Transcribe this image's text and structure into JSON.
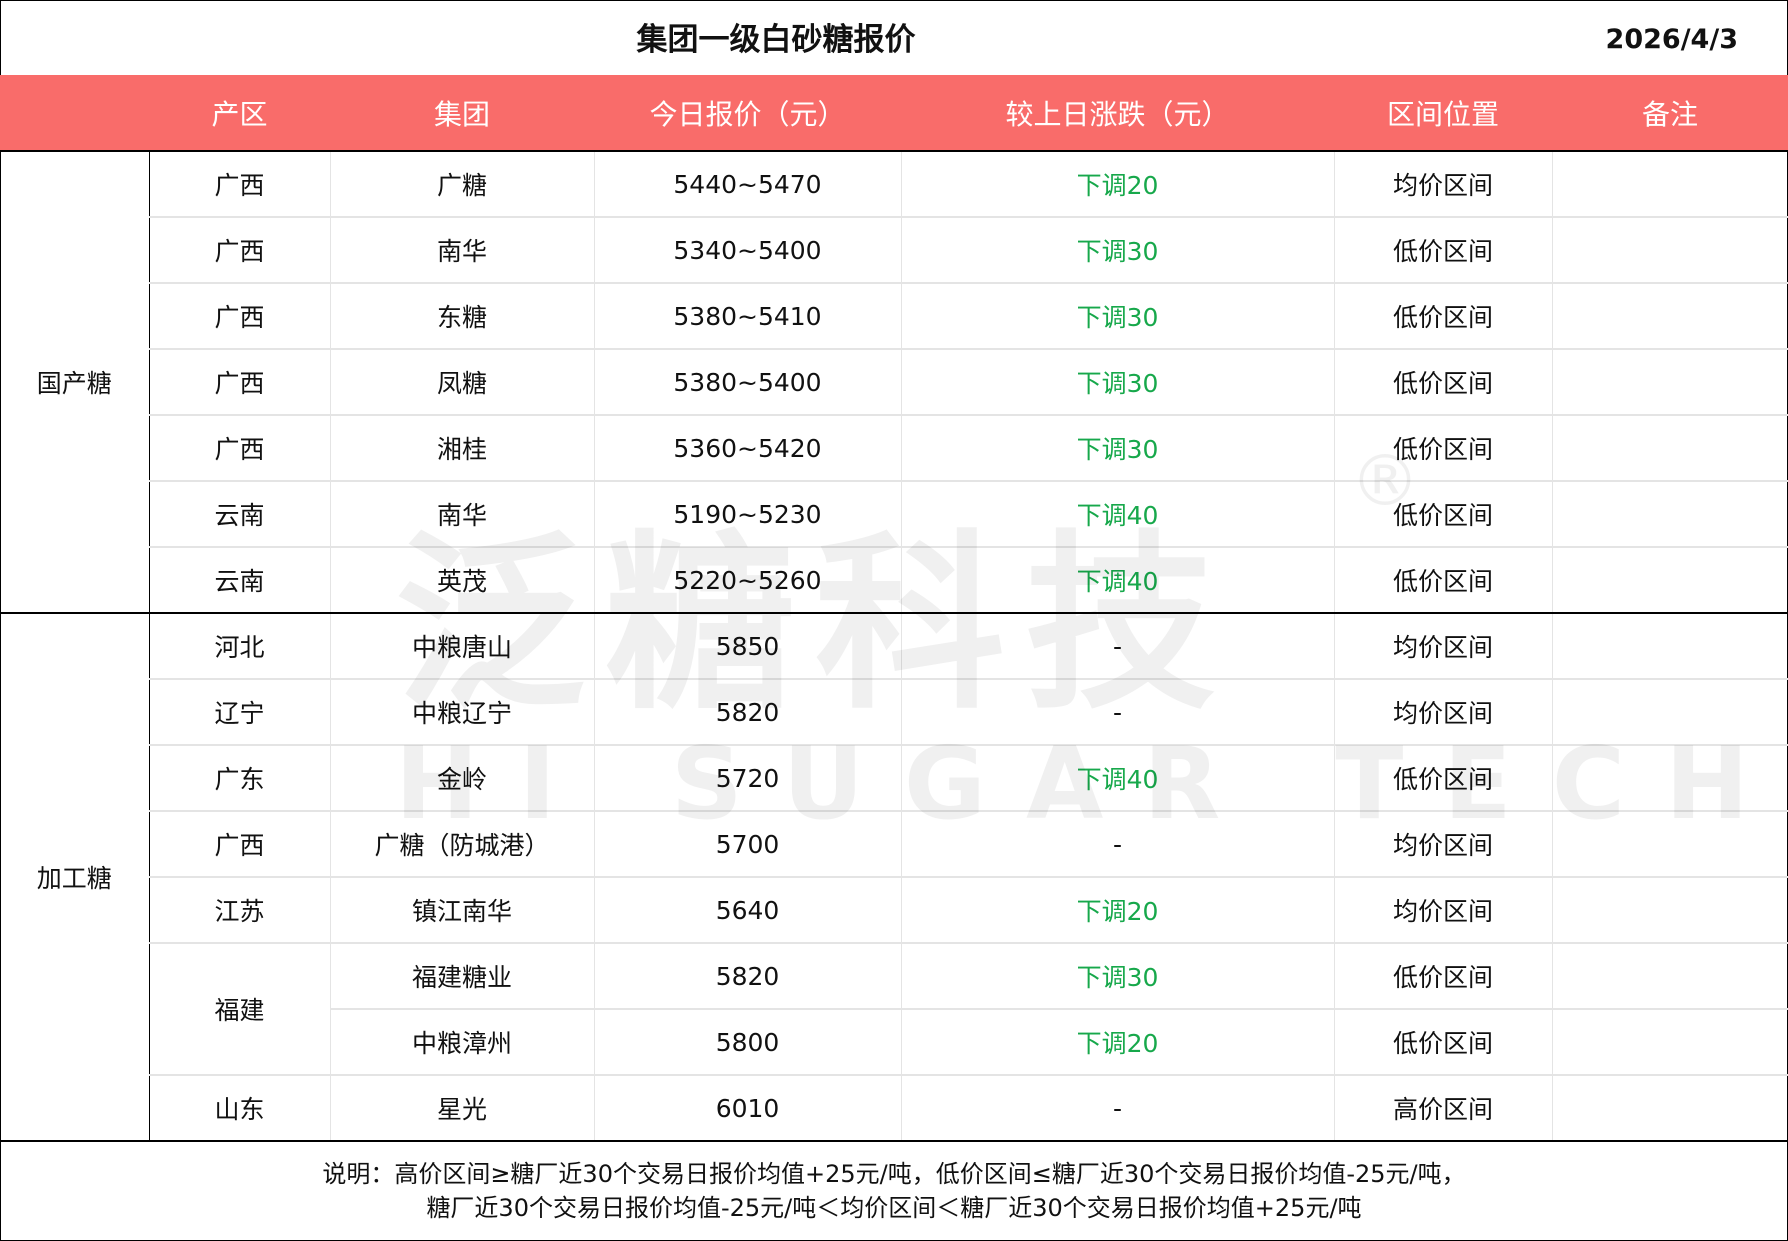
{
  "title": "集团一级白砂糖报价",
  "date": "2026/4/3",
  "headers": [
    "",
    "产区",
    "集团",
    "今日报价（元）",
    "较上日涨跌（元）",
    "区间位置",
    "备注"
  ],
  "groups": [
    {
      "category": "国产糖",
      "rows": [
        {
          "region": "广西",
          "group": "广糖",
          "price": "5440~5470",
          "change": "下调20",
          "position": "均价区间",
          "note": ""
        },
        {
          "region": "广西",
          "group": "南华",
          "price": "5340~5400",
          "change": "下调30",
          "position": "低价区间",
          "note": ""
        },
        {
          "region": "广西",
          "group": "东糖",
          "price": "5380~5410",
          "change": "下调30",
          "position": "低价区间",
          "note": ""
        },
        {
          "region": "广西",
          "group": "凤糖",
          "price": "5380~5400",
          "change": "下调30",
          "position": "低价区间",
          "note": ""
        },
        {
          "region": "广西",
          "group": "湘桂",
          "price": "5360~5420",
          "change": "下调30",
          "position": "低价区间",
          "note": ""
        },
        {
          "region": "云南",
          "group": "南华",
          "price": "5190~5230",
          "change": "下调40",
          "position": "低价区间",
          "note": ""
        },
        {
          "region": "云南",
          "group": "英茂",
          "price": "5220~5260",
          "change": "下调40",
          "position": "低价区间",
          "note": ""
        }
      ]
    },
    {
      "category": "加工糖",
      "rows": [
        {
          "region": "河北",
          "group": "中粮唐山",
          "price": "5850",
          "change": "-",
          "position": "均价区间",
          "note": ""
        },
        {
          "region": "辽宁",
          "group": "中粮辽宁",
          "price": "5820",
          "change": "-",
          "position": "均价区间",
          "note": ""
        },
        {
          "region": "广东",
          "group": "金岭",
          "price": "5720",
          "change": "下调40",
          "position": "低价区间",
          "note": ""
        },
        {
          "region": "广西",
          "group": "广糖（防城港）",
          "price": "5700",
          "change": "-",
          "position": "均价区间",
          "note": ""
        },
        {
          "region": "江苏",
          "group": "镇江南华",
          "price": "5640",
          "change": "下调20",
          "position": "均价区间",
          "note": ""
        },
        {
          "region": "福建",
          "group": "福建糖业",
          "price": "5820",
          "change": "下调30",
          "position": "低价区间",
          "note": ""
        },
        {
          "region": "福建",
          "group": "中粮漳州",
          "price": "5800",
          "change": "下调20",
          "position": "低价区间",
          "note": ""
        },
        {
          "region": "山东",
          "group": "星光",
          "price": "6010",
          "change": "-",
          "position": "高价区间",
          "note": ""
        }
      ]
    }
  ],
  "footer": {
    "line1": "说明：高价区间≥糖厂近30个交易日报价均值+25元/吨，低价区间≤糖厂近30个交易日报价均值-25元/吨，",
    "line2": "糖厂近30个交易日报价均值-25元/吨＜均价区间＜糖厂近30个交易日报价均值+25元/吨"
  },
  "watermark": {
    "cn": "泛糖科技",
    "en": "HI SUGAR TECH",
    "mark": "®"
  },
  "colors": {
    "header_bg": "#F96C6A",
    "down": "#17A84B"
  }
}
